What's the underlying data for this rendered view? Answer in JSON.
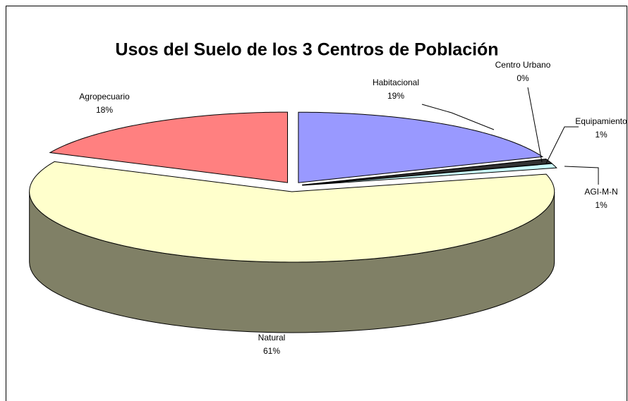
{
  "chart_data": {
    "type": "pie",
    "title": "Usos del Suelo de los 3 Centros de Población",
    "categories": [
      "Habitacional",
      "Centro Urbano",
      "Equipamiento",
      "AGI-M-N",
      "Natural",
      "Agropecuario"
    ],
    "values": [
      19,
      0,
      1,
      1,
      61,
      18
    ],
    "value_labels": [
      "19%",
      "0%",
      "1%",
      "1%",
      "61%",
      "18%"
    ],
    "colors": [
      "#9999ff",
      "#993366",
      "#333333",
      "#ccffff",
      "#ffffcc",
      "#ff8080"
    ]
  }
}
